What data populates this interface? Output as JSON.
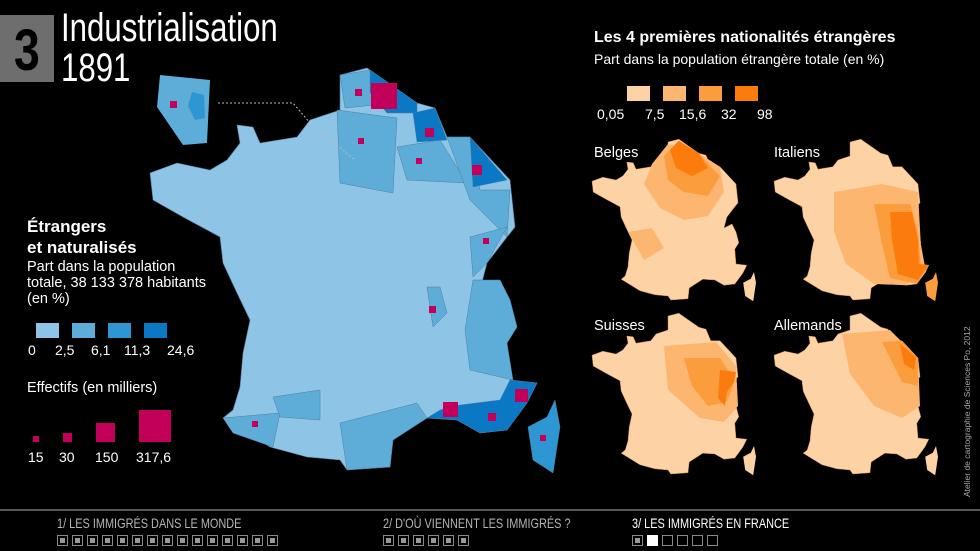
{
  "header": {
    "number": "3",
    "title": "Industrialisation",
    "year": "1891"
  },
  "main_legend": {
    "title_line1": "Étrangers",
    "title_line2": "et naturalisés",
    "subtitle_line1": "Part dans la population",
    "subtitle_line2": "totale, 38 133 378 habitants",
    "subtitle_line3": "(en %)",
    "class_breaks": [
      "0",
      "2,5",
      "6,1",
      "11,3",
      "24,6"
    ],
    "class_colors": [
      "#8ec4e6",
      "#5eadd9",
      "#2d96d3",
      "#0b78c6"
    ],
    "effectifs_title": "Effectifs (en milliers)",
    "effectifs_values": [
      "15",
      "30",
      "150",
      "317,6"
    ],
    "effectifs_color": "#c2005a"
  },
  "nationalities": {
    "title": "Les 4 premières nationalités étrangères",
    "subtitle": "Part dans la population étrangère totale (en %)",
    "class_breaks": [
      "0,05",
      "7,5",
      "15,6",
      "32",
      "98"
    ],
    "class_colors": [
      "#fdd3a6",
      "#fcb66f",
      "#fb9c3d",
      "#fb7c0c"
    ],
    "maps": [
      {
        "label": "Belges"
      },
      {
        "label": "Italiens"
      },
      {
        "label": "Suisses"
      },
      {
        "label": "Allemands"
      }
    ]
  },
  "credit": "Atelier de cartographie de Sciences Po, 2012",
  "nav": {
    "sections": [
      {
        "label": "1/ LES IMMIGRÉS DANS LE MONDE",
        "pages": 15,
        "current": null
      },
      {
        "label": "2/ D'OÙ VIENNENT LES IMMIGRÉS ?",
        "pages": 6,
        "current": null
      },
      {
        "label": "3/ LES IMMIGRÉS EN FRANCE",
        "pages": 6,
        "current": 2
      }
    ]
  }
}
